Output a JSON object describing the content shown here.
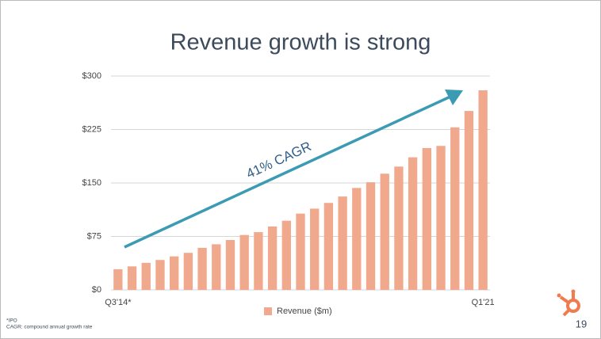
{
  "chart_data": {
    "type": "bar",
    "title": "Revenue growth is strong",
    "categories": [
      "Q3'14*",
      null,
      null,
      null,
      null,
      null,
      null,
      null,
      null,
      null,
      null,
      null,
      null,
      null,
      null,
      null,
      null,
      null,
      null,
      null,
      null,
      null,
      null,
      null,
      null,
      null,
      "Q1'21"
    ],
    "series": [
      {
        "name": "Revenue ($m)",
        "color": "#f0a98d",
        "values": [
          29,
          33,
          38,
          42,
          47,
          52,
          59,
          64,
          70,
          77,
          81,
          89,
          97,
          107,
          114,
          122,
          131,
          143,
          151,
          163,
          173,
          186,
          199,
          202,
          228,
          251,
          280
        ]
      }
    ],
    "ylim": [
      0,
      300
    ],
    "yticks": [
      {
        "value": 0,
        "label": "$0"
      },
      {
        "value": 75,
        "label": "$75"
      },
      {
        "value": 150,
        "label": "$150"
      },
      {
        "value": 225,
        "label": "$225"
      },
      {
        "value": 300,
        "label": "$300"
      }
    ],
    "grid": true,
    "legend": "bottom",
    "annotation": "41% CAGR"
  },
  "footnotes": [
    "*IPO",
    "CAGR: compound annual growth rate"
  ],
  "page_number": "19"
}
